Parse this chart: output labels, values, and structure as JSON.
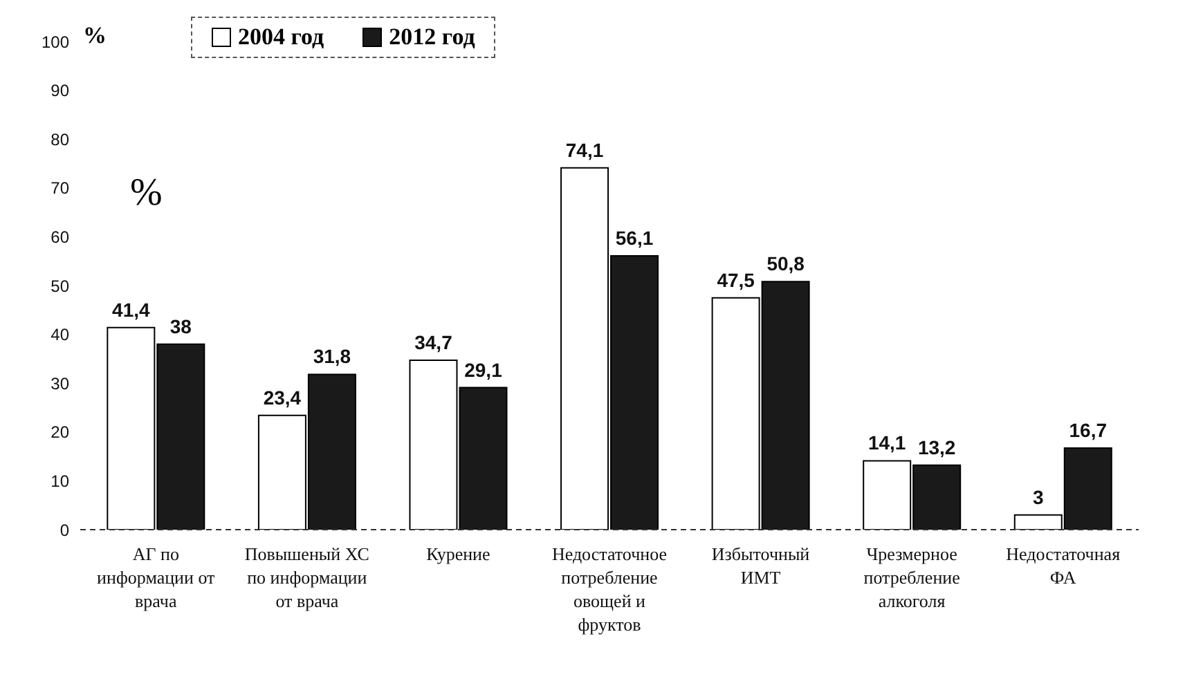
{
  "chart_data": {
    "type": "bar",
    "ylabel": "%",
    "annotations": [
      "%"
    ],
    "categories": [
      "АГ по информации от врача",
      "Повышеный ХС по информации от врача",
      "Курение",
      "Недостаточное потребление овощей и фруктов",
      "Избыточный ИМТ",
      "Чрезмерное потребление алкоголя",
      "Недостаточная ФА"
    ],
    "series": [
      {
        "name": "2004 год",
        "color": "#ffffff",
        "values": [
          41.4,
          23.4,
          34.7,
          74.1,
          47.5,
          14.1,
          3
        ],
        "value_labels": [
          "41,4",
          "23,4",
          "34,7",
          "74,1",
          "47,5",
          "14,1",
          "3"
        ]
      },
      {
        "name": "2012 год",
        "color": "#1a1a1a",
        "values": [
          38,
          31.8,
          29.1,
          56.1,
          50.8,
          13.2,
          16.7
        ],
        "value_labels": [
          "38",
          "31,8",
          "29,1",
          "56,1",
          "50,8",
          "13,2",
          "16,7"
        ]
      }
    ],
    "ylim": [
      0,
      100
    ],
    "yticks": [
      0,
      10,
      20,
      30,
      40,
      50,
      60,
      70,
      80,
      90,
      100
    ],
    "legend": "top"
  }
}
